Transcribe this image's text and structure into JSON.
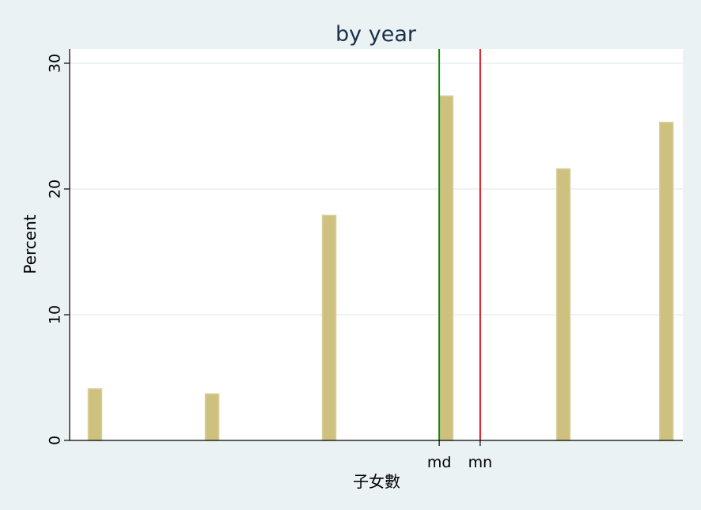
{
  "chart_data": {
    "type": "bar",
    "title": "by year",
    "xlabel": "子女數",
    "ylabel": "Percent",
    "ylim": [
      0,
      30
    ],
    "xlim": [
      0,
      5.27
    ],
    "yticks": [
      0,
      10,
      20,
      30
    ],
    "grid": true,
    "bars": [
      {
        "x": 0.0,
        "value": 4.1
      },
      {
        "x": 1.0,
        "value": 3.7
      },
      {
        "x": 2.0,
        "value": 17.9
      },
      {
        "x": 3.0,
        "value": 27.4
      },
      {
        "x": 4.0,
        "value": 21.6
      },
      {
        "x": 4.88,
        "value": 25.3
      }
    ],
    "reference_lines": [
      {
        "label": "md",
        "x": 2.94,
        "color": "#118a11"
      },
      {
        "label": "mn",
        "x": 3.29,
        "color": "#e11a1a"
      }
    ]
  },
  "colors": {
    "bar_fill": "#cec17f",
    "bar_edge": "#d9d09b",
    "plot_background": "#ffffff",
    "page_background": "#eaf2f3",
    "grid": "#e8eef0"
  }
}
